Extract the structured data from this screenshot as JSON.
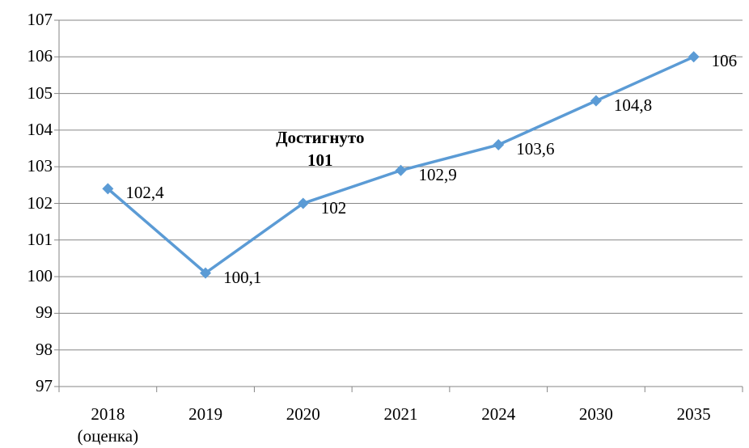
{
  "chart_data": {
    "type": "line",
    "categories": [
      "2018\n(оценка)",
      "2019",
      "2020",
      "2021",
      "2024",
      "2030",
      "2035"
    ],
    "series": [
      {
        "color": "#5b9bd5",
        "values": [
          102.4,
          100.1,
          102,
          102.9,
          103.6,
          104.8,
          106
        ],
        "value_labels": [
          "102,4",
          "100,1",
          "102",
          "102,9",
          "103,6",
          "104,8",
          "106"
        ]
      }
    ],
    "annotations": [
      "Достигнуто\n101"
    ],
    "ylim": [
      97,
      107
    ],
    "yticks": [
      97,
      98,
      99,
      100,
      101,
      102,
      103,
      104,
      105,
      106,
      107
    ],
    "grid": true
  }
}
